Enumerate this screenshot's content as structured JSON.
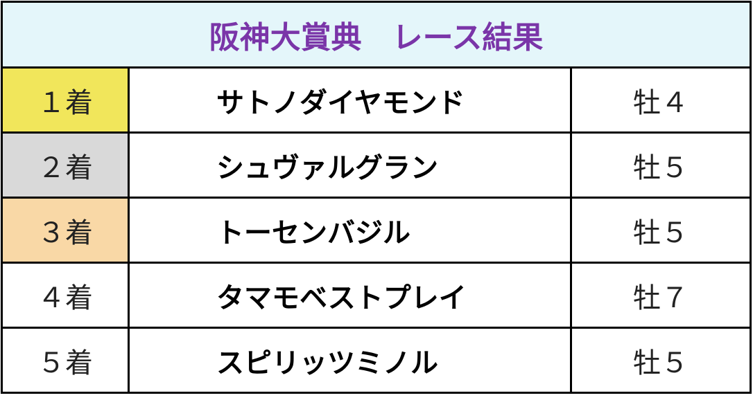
{
  "header": {
    "title": "阪神大賞典　レース結果"
  },
  "table": {
    "rows": [
      [
        "１着",
        "サトノダイヤモンド",
        "牡４"
      ],
      [
        "２着",
        "シュヴァルグラン",
        "牡５"
      ],
      [
        "３着",
        "トーセンバジル",
        "牡５"
      ],
      [
        "４着",
        "タマモベストプレイ",
        "牡７"
      ],
      [
        "５着",
        "スピリッツミノル",
        "牡５"
      ]
    ]
  }
}
